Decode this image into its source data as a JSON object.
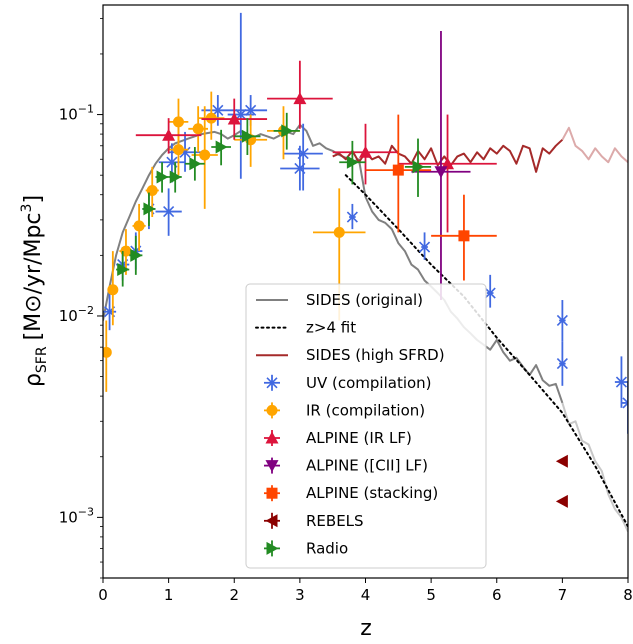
{
  "chart_data": {
    "type": "scatter",
    "xlabel": "z",
    "ylabel_main": "ρ",
    "ylabel_sub": "SFR",
    "ylabel_unit": "[M⊙/yr/Mpc",
    "ylabel_exp": "3",
    "ylabel_end": "]",
    "xlim": [
      0,
      8
    ],
    "ylim": [
      0.0005,
      0.35
    ],
    "yscale": "log",
    "grid": false,
    "legend_position": "lower-center",
    "x_ticks": [
      "0",
      "1",
      "2",
      "3",
      "4",
      "5",
      "6",
      "7",
      "8"
    ],
    "y_ticks": [
      {
        "value": 0.001,
        "mant": "10",
        "exp": "−3"
      },
      {
        "value": 0.01,
        "mant": "10",
        "exp": "−2"
      },
      {
        "value": 0.1,
        "mant": "10",
        "exp": "−1"
      }
    ],
    "lines": [
      {
        "name": "SIDES (original)",
        "color": "#808080",
        "style": "solid",
        "width": 2,
        "x": [
          0.0,
          0.1,
          0.2,
          0.3,
          0.4,
          0.5,
          0.6,
          0.7,
          0.8,
          0.9,
          1.0,
          1.1,
          1.2,
          1.3,
          1.4,
          1.5,
          1.6,
          1.7,
          1.8,
          1.9,
          2.0,
          2.1,
          2.2,
          2.3,
          2.4,
          2.5,
          2.6,
          2.7,
          2.8,
          2.9,
          3.0,
          3.1,
          3.2,
          3.3,
          3.4,
          3.5,
          3.6,
          3.7,
          3.8,
          3.9,
          4.0,
          4.1,
          4.2,
          4.3,
          4.4,
          4.5,
          4.6,
          4.7,
          4.8,
          4.9,
          5.0,
          5.1,
          5.2,
          5.3,
          5.4,
          5.5,
          5.6,
          5.7,
          5.8,
          5.9,
          6.0,
          6.1,
          6.2,
          6.3,
          6.4,
          6.5,
          6.6,
          6.7,
          6.8,
          6.9,
          7.0
        ],
        "y": [
          0.0095,
          0.014,
          0.02,
          0.026,
          0.031,
          0.037,
          0.043,
          0.05,
          0.057,
          0.063,
          0.068,
          0.072,
          0.074,
          0.076,
          0.078,
          0.08,
          0.081,
          0.082,
          0.08,
          0.076,
          0.079,
          0.083,
          0.079,
          0.077,
          0.08,
          0.078,
          0.076,
          0.079,
          0.082,
          0.08,
          0.089,
          0.083,
          0.07,
          0.072,
          0.068,
          0.066,
          0.063,
          0.061,
          0.058,
          0.06,
          0.039,
          0.033,
          0.03,
          0.029,
          0.027,
          0.023,
          0.021,
          0.018,
          0.017,
          0.015,
          0.014,
          0.013,
          0.012,
          0.0105,
          0.0097,
          0.0088,
          0.0082,
          0.0076,
          0.0072,
          0.0068,
          0.0076,
          0.0066,
          0.006,
          0.0062,
          0.0056,
          0.0051,
          0.0057,
          0.0048,
          0.0045,
          0.0046,
          0.0037
        ]
      },
      {
        "name": "",
        "color": "#c8c8c8",
        "style": "solid",
        "width": 2,
        "x": [
          7.0,
          7.1,
          7.2,
          7.3,
          7.4,
          7.5,
          7.6,
          7.7,
          7.8,
          7.9,
          8.0
        ],
        "y": [
          0.0037,
          0.0029,
          0.003,
          0.0024,
          0.0023,
          0.0019,
          0.0017,
          0.0013,
          0.0011,
          0.001,
          0.00085
        ]
      },
      {
        "name": "z>4 fit",
        "color": "#000000",
        "style": "dotted",
        "width": 2,
        "x": [
          3.7,
          4.0,
          4.5,
          5.0,
          5.5,
          6.0,
          6.5,
          7.0,
          7.5,
          8.0
        ],
        "y": [
          0.05,
          0.04,
          0.027,
          0.018,
          0.0125,
          0.0078,
          0.0051,
          0.0033,
          0.0018,
          0.0009
        ]
      },
      {
        "name": "SIDES (high SFRD)",
        "color": "#a52a2a",
        "style": "solid",
        "width": 2,
        "x": [
          3.5,
          3.6,
          3.7,
          3.8,
          3.9,
          4.0,
          4.1,
          4.2,
          4.3,
          4.4,
          4.5,
          4.6,
          4.7,
          4.8,
          4.9,
          5.0,
          5.1,
          5.2,
          5.3,
          5.4,
          5.5,
          5.6,
          5.7,
          5.8,
          5.9,
          6.0,
          6.1,
          6.2,
          6.3,
          6.4,
          6.5,
          6.6,
          6.7,
          6.8,
          6.9,
          7.0
        ],
        "y": [
          0.062,
          0.064,
          0.06,
          0.066,
          0.058,
          0.065,
          0.06,
          0.062,
          0.057,
          0.07,
          0.064,
          0.062,
          0.057,
          0.066,
          0.06,
          0.068,
          0.056,
          0.062,
          0.056,
          0.062,
          0.064,
          0.058,
          0.065,
          0.06,
          0.068,
          0.064,
          0.07,
          0.066,
          0.057,
          0.07,
          0.068,
          0.052,
          0.068,
          0.064,
          0.07,
          0.075
        ]
      },
      {
        "name": "",
        "color": "#dcaaaa",
        "style": "solid",
        "width": 2,
        "x": [
          7.0,
          7.1,
          7.2,
          7.3,
          7.4,
          7.5,
          7.6,
          7.7,
          7.8,
          7.9,
          8.0
        ],
        "y": [
          0.075,
          0.086,
          0.07,
          0.066,
          0.06,
          0.068,
          0.062,
          0.058,
          0.068,
          0.062,
          0.058
        ]
      }
    ],
    "series": [
      {
        "name": "UV (compilation)",
        "color": "#4169e1",
        "marker": "x",
        "points": [
          {
            "x": 0.1,
            "y": 0.0105,
            "xe": 0.1,
            "ylo": 0.0085,
            "yhi": 0.013
          },
          {
            "x": 0.3,
            "y": 0.018,
            "xe": 0.1,
            "ylo": 0.015,
            "yhi": 0.022
          },
          {
            "x": 0.5,
            "y": 0.021,
            "xe": 0.1,
            "ylo": 0.017,
            "yhi": 0.026
          },
          {
            "x": 0.7,
            "y": 0.034,
            "xe": 0.1,
            "ylo": 0.027,
            "yhi": 0.041
          },
          {
            "x": 1.0,
            "y": 0.033,
            "xe": 0.2,
            "ylo": 0.025,
            "yhi": 0.043
          },
          {
            "x": 1.05,
            "y": 0.058,
            "xe": 0.2,
            "ylo": 0.046,
            "yhi": 0.072
          },
          {
            "x": 1.25,
            "y": 0.065,
            "xe": 0.25,
            "ylo": 0.052,
            "yhi": 0.082
          },
          {
            "x": 1.75,
            "y": 0.105,
            "xe": 0.25,
            "ylo": 0.088,
            "yhi": 0.125
          },
          {
            "x": 2.1,
            "y": 0.1,
            "xe": 0.2,
            "ylo": 0.048,
            "yhi": 0.32
          },
          {
            "x": 2.25,
            "y": 0.105,
            "xe": 0.25,
            "ylo": 0.088,
            "yhi": 0.125
          },
          {
            "x": 3.0,
            "y": 0.054,
            "xe": 0.3,
            "ylo": 0.042,
            "yhi": 0.07
          },
          {
            "x": 3.05,
            "y": 0.064,
            "xe": 0.3,
            "ylo": 0.042,
            "yhi": 0.09
          },
          {
            "x": 3.8,
            "y": 0.031,
            "xe": 0.05,
            "ylo": 0.027,
            "yhi": 0.036
          },
          {
            "x": 4.9,
            "y": 0.022,
            "xe": 0.05,
            "ylo": 0.019,
            "yhi": 0.026
          },
          {
            "x": 5.9,
            "y": 0.013,
            "xe": 0.05,
            "ylo": 0.011,
            "yhi": 0.016
          },
          {
            "x": 7.0,
            "y": 0.0095,
            "xe": 0.05,
            "ylo": 0.0075,
            "yhi": 0.012
          },
          {
            "x": 7.0,
            "y": 0.0058,
            "xe": 0.05,
            "ylo": 0.0045,
            "yhi": 0.0075
          },
          {
            "x": 7.9,
            "y": 0.0047,
            "xe": 0.1,
            "ylo": 0.0035,
            "yhi": 0.0063
          },
          {
            "x": 8.0,
            "y": 0.0037,
            "xe": 0.1,
            "ylo": 0.0026,
            "yhi": 0.0047
          }
        ]
      },
      {
        "name": "IR (compilation)",
        "color": "#ffa500",
        "marker": "o",
        "points": [
          {
            "x": 0.05,
            "y": 0.0066,
            "xe": 0.05,
            "ylo": 0.0042,
            "yhi": 0.0095
          },
          {
            "x": 0.15,
            "y": 0.0135,
            "xe": 0.05,
            "ylo": 0.009,
            "yhi": 0.021
          },
          {
            "x": 0.35,
            "y": 0.021,
            "xe": 0.1,
            "ylo": 0.016,
            "yhi": 0.027
          },
          {
            "x": 0.55,
            "y": 0.028,
            "xe": 0.1,
            "ylo": 0.021,
            "yhi": 0.036
          },
          {
            "x": 0.75,
            "y": 0.042,
            "xe": 0.1,
            "ylo": 0.031,
            "yhi": 0.055
          },
          {
            "x": 1.15,
            "y": 0.092,
            "xe": 0.15,
            "ylo": 0.07,
            "yhi": 0.12
          },
          {
            "x": 1.15,
            "y": 0.067,
            "xe": 0.15,
            "ylo": 0.05,
            "yhi": 0.09
          },
          {
            "x": 1.45,
            "y": 0.085,
            "xe": 0.15,
            "ylo": 0.065,
            "yhi": 0.11
          },
          {
            "x": 1.55,
            "y": 0.063,
            "xe": 0.2,
            "ylo": 0.034,
            "yhi": 0.11
          },
          {
            "x": 1.65,
            "y": 0.096,
            "xe": 0.2,
            "ylo": 0.075,
            "yhi": 0.13
          },
          {
            "x": 2.25,
            "y": 0.075,
            "xe": 0.25,
            "ylo": 0.055,
            "yhi": 0.1
          },
          {
            "x": 2.75,
            "y": 0.083,
            "xe": 0.25,
            "ylo": 0.06,
            "yhi": 0.11
          },
          {
            "x": 3.6,
            "y": 0.026,
            "xe": 0.4,
            "ylo": 0.0095,
            "yhi": 0.043
          }
        ]
      },
      {
        "name": "ALPINE (IR LF)",
        "color": "#dc143c",
        "marker": "^",
        "points": [
          {
            "x": 1.0,
            "y": 0.079,
            "xe": 0.5,
            "ylo": 0.064,
            "yhi": 0.096
          },
          {
            "x": 2.0,
            "y": 0.095,
            "xe": 0.5,
            "ylo": 0.075,
            "yhi": 0.12
          },
          {
            "x": 3.0,
            "y": 0.12,
            "xe": 0.5,
            "ylo": 0.085,
            "yhi": 0.185
          },
          {
            "x": 4.0,
            "y": 0.065,
            "xe": 0.5,
            "ylo": 0.045,
            "yhi": 0.09
          },
          {
            "x": 5.25,
            "y": 0.057,
            "xe": 0.75,
            "ylo": 0.026,
            "yhi": 0.1
          }
        ]
      },
      {
        "name": "ALPINE ([CII] LF)",
        "color": "#800080",
        "marker": "v",
        "points": [
          {
            "x": 5.15,
            "y": 0.052,
            "xe": 0.45,
            "ylo": 0.012,
            "yhi": 0.26
          }
        ]
      },
      {
        "name": "ALPINE (stacking)",
        "color": "#ff4500",
        "marker": "s",
        "points": [
          {
            "x": 4.5,
            "y": 0.053,
            "xe": 0.5,
            "ylo": 0.026,
            "yhi": 0.1
          },
          {
            "x": 5.5,
            "y": 0.025,
            "xe": 0.5,
            "ylo": 0.015,
            "yhi": 0.04
          }
        ]
      },
      {
        "name": "REBELS",
        "color": "#8b0000",
        "marker": "<",
        "points": [
          {
            "x": 7.0,
            "y": 0.0019
          },
          {
            "x": 7.0,
            "y": 0.0012
          }
        ]
      },
      {
        "name": "Radio",
        "color": "#228b22",
        "marker": ">",
        "points": [
          {
            "x": 0.3,
            "y": 0.017,
            "xe": 0.1,
            "ylo": 0.014,
            "yhi": 0.021
          },
          {
            "x": 0.5,
            "y": 0.02,
            "xe": 0.1,
            "ylo": 0.016,
            "yhi": 0.025
          },
          {
            "x": 0.7,
            "y": 0.034,
            "xe": 0.1,
            "ylo": 0.028,
            "yhi": 0.041
          },
          {
            "x": 0.9,
            "y": 0.049,
            "xe": 0.1,
            "ylo": 0.041,
            "yhi": 0.058
          },
          {
            "x": 1.1,
            "y": 0.049,
            "xe": 0.1,
            "ylo": 0.041,
            "yhi": 0.058
          },
          {
            "x": 1.4,
            "y": 0.057,
            "xe": 0.15,
            "ylo": 0.047,
            "yhi": 0.069
          },
          {
            "x": 1.8,
            "y": 0.069,
            "xe": 0.15,
            "ylo": 0.056,
            "yhi": 0.084
          },
          {
            "x": 2.2,
            "y": 0.078,
            "xe": 0.2,
            "ylo": 0.063,
            "yhi": 0.096
          },
          {
            "x": 2.8,
            "y": 0.083,
            "xe": 0.2,
            "ylo": 0.067,
            "yhi": 0.102
          },
          {
            "x": 3.8,
            "y": 0.058,
            "xe": 0.2,
            "ylo": 0.045,
            "yhi": 0.074
          },
          {
            "x": 4.8,
            "y": 0.055,
            "xe": 0.2,
            "ylo": 0.039,
            "yhi": 0.076
          }
        ]
      }
    ],
    "legend": [
      {
        "label": "SIDES (original)",
        "kind": "line",
        "color": "#808080",
        "style": "solid"
      },
      {
        "label": "z>4 fit",
        "kind": "line",
        "color": "#000000",
        "style": "dotted"
      },
      {
        "label": "SIDES (high SFRD)",
        "kind": "line",
        "color": "#a52a2a",
        "style": "solid"
      },
      {
        "label": "UV (compilation)",
        "kind": "marker",
        "color": "#4169e1",
        "marker": "x"
      },
      {
        "label": "IR (compilation)",
        "kind": "marker",
        "color": "#ffa500",
        "marker": "o"
      },
      {
        "label": "ALPINE (IR LF)",
        "kind": "marker",
        "color": "#dc143c",
        "marker": "^"
      },
      {
        "label": "ALPINE ([CII] LF)",
        "kind": "marker",
        "color": "#800080",
        "marker": "v"
      },
      {
        "label": "ALPINE (stacking)",
        "kind": "marker",
        "color": "#ff4500",
        "marker": "s"
      },
      {
        "label": "REBELS",
        "kind": "marker",
        "color": "#8b0000",
        "marker": "<"
      },
      {
        "label": "Radio",
        "kind": "marker",
        "color": "#228b22",
        "marker": ">"
      }
    ]
  }
}
